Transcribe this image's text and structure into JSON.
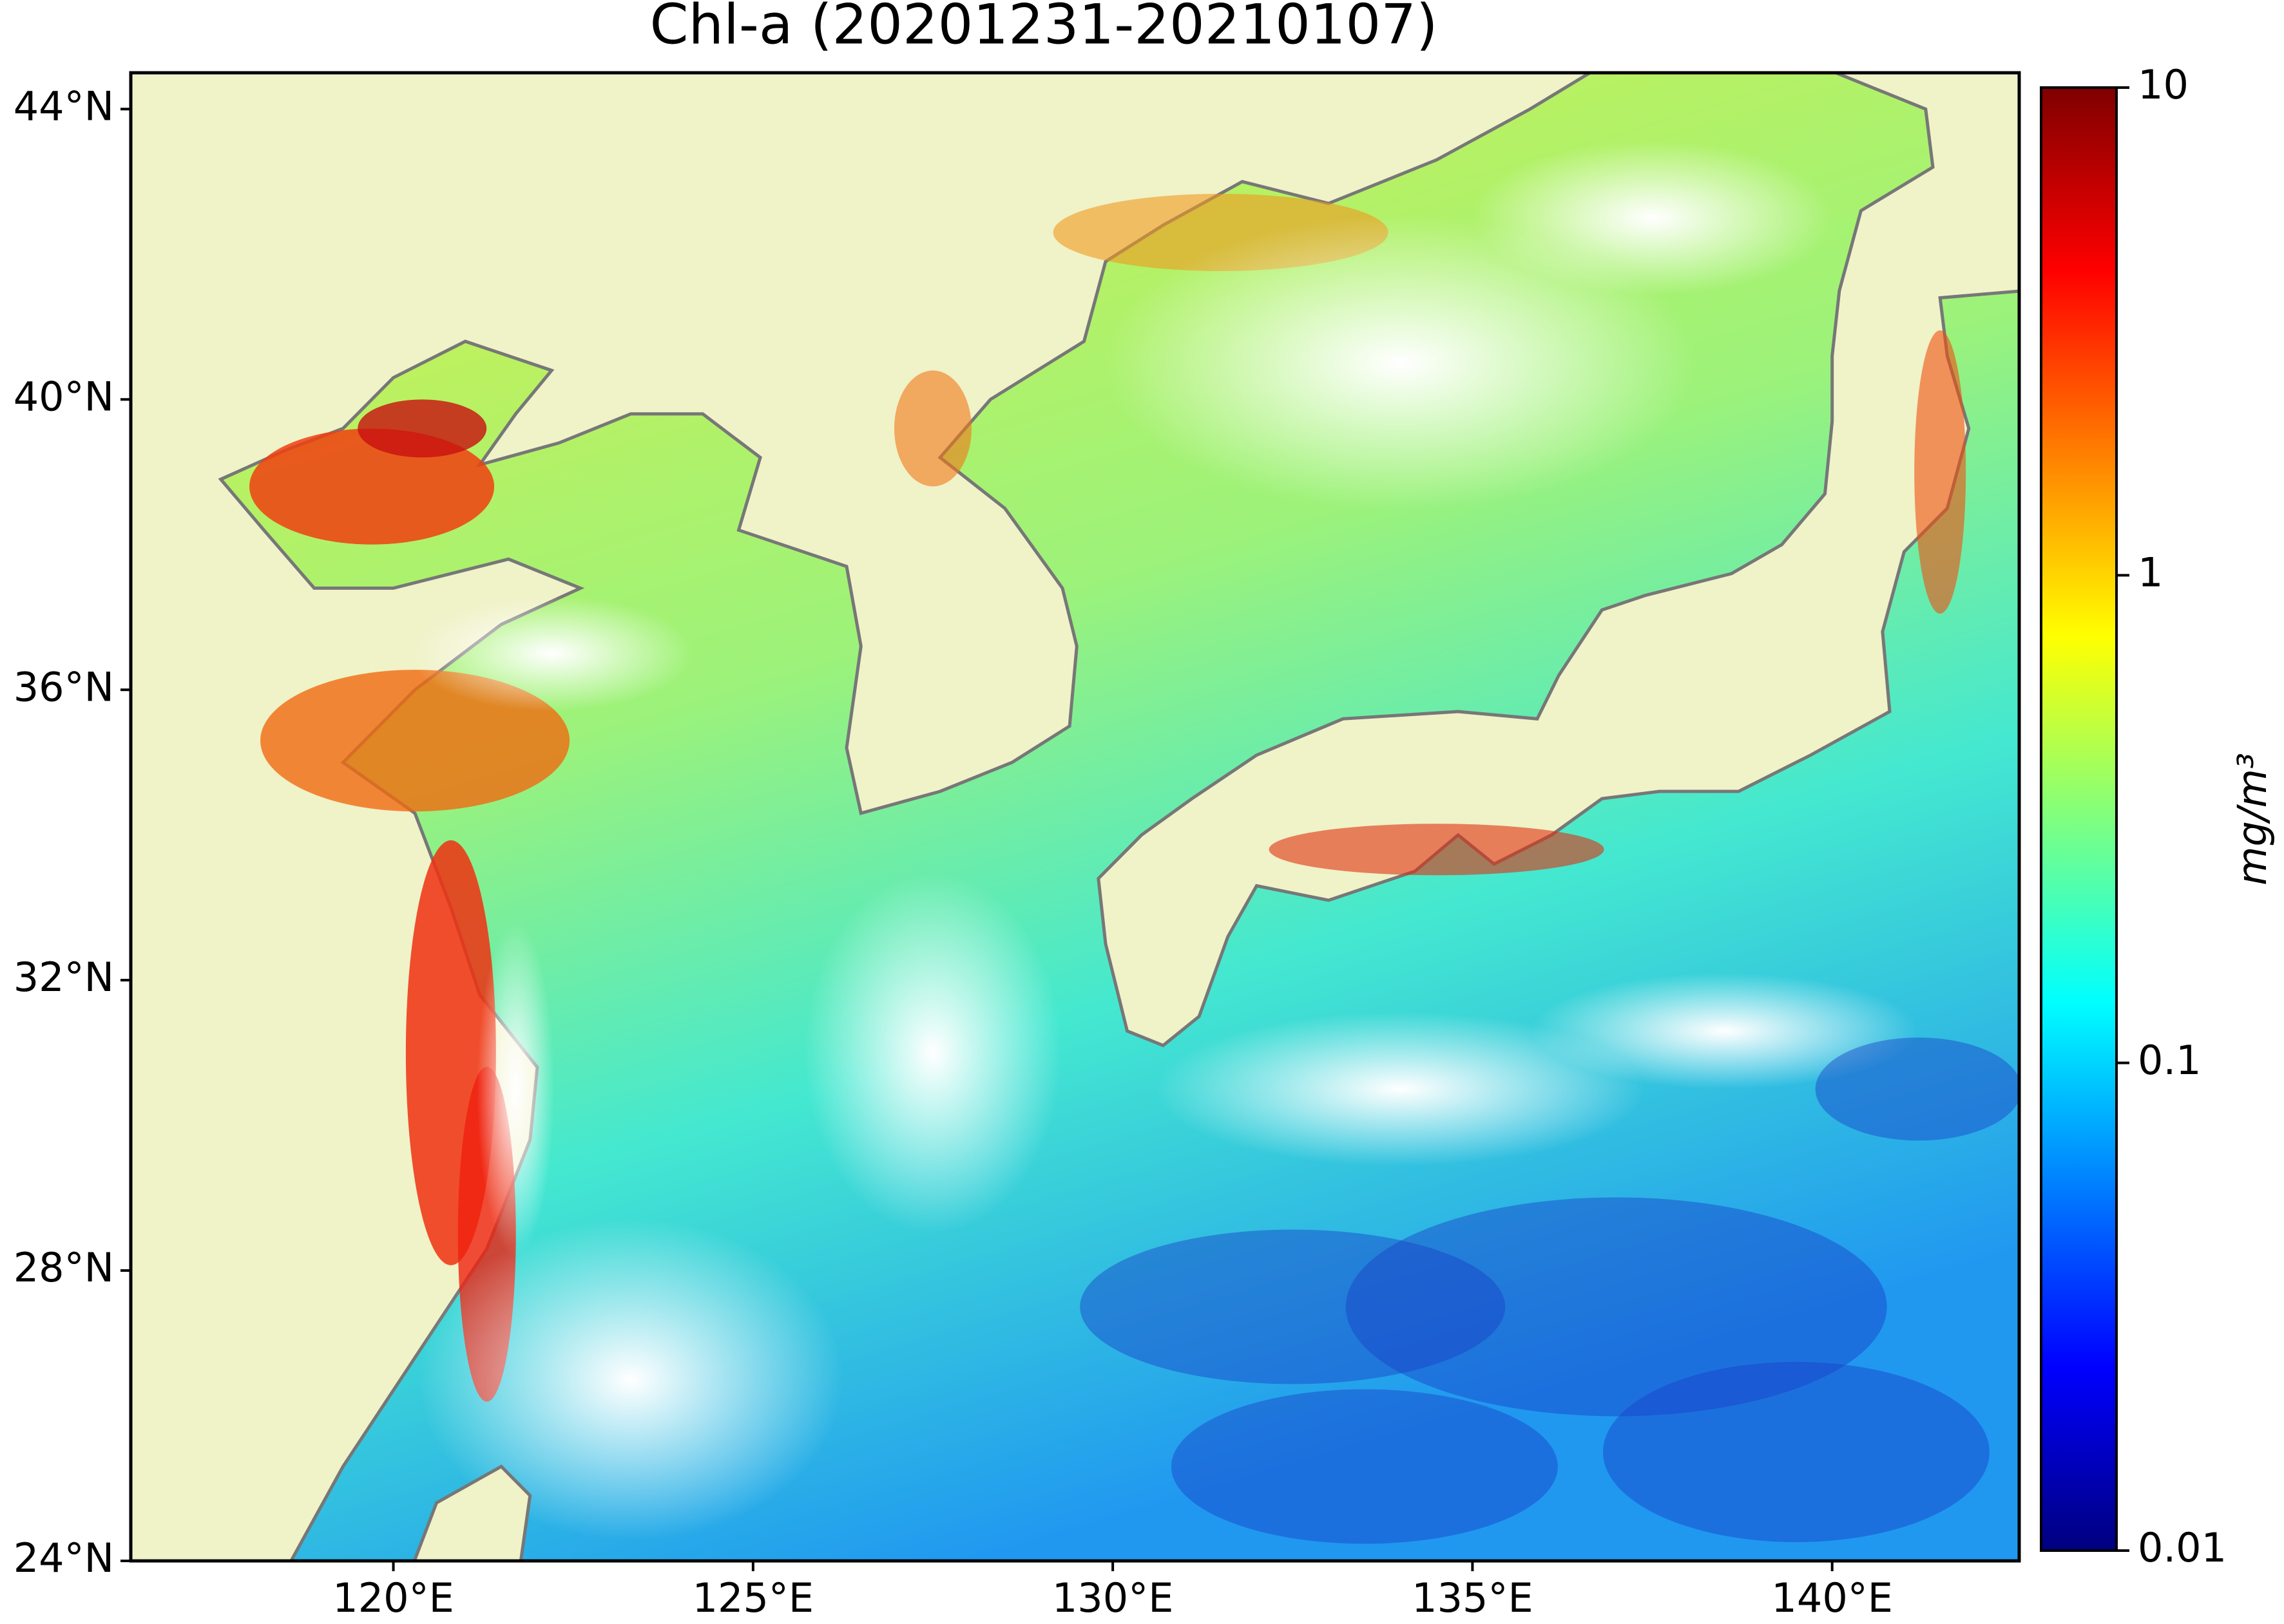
{
  "map": {
    "title": "Chl-a (20201231-20210107)",
    "lonlim": [
      116.35,
      142.6
    ],
    "latlim": [
      24,
      44.5
    ],
    "lon_ticks": [
      {
        "value": 120,
        "label": "120°E"
      },
      {
        "value": 125,
        "label": "125°E"
      },
      {
        "value": 130,
        "label": "130°E"
      },
      {
        "value": 135,
        "label": "135°E"
      },
      {
        "value": 140,
        "label": "140°E"
      }
    ],
    "lat_ticks": [
      {
        "value": 24,
        "label": "24°N"
      },
      {
        "value": 28,
        "label": "28°N"
      },
      {
        "value": 32,
        "label": "32°N"
      },
      {
        "value": 36,
        "label": "36°N"
      },
      {
        "value": 40,
        "label": "40°N"
      },
      {
        "value": 44,
        "label": "44°N"
      }
    ],
    "land_color": "#f0f2c8",
    "colorbar": {
      "label": "mg/m³",
      "scale": "log",
      "lim": [
        0.01,
        10
      ],
      "ticks": [
        0.01,
        0.1,
        1,
        10
      ],
      "colormap": [
        "#00007f",
        "#0000ff",
        "#007fff",
        "#00ffff",
        "#7fff7f",
        "#ffff00",
        "#ff7f00",
        "#ff0000",
        "#7f0000"
      ]
    }
  }
}
